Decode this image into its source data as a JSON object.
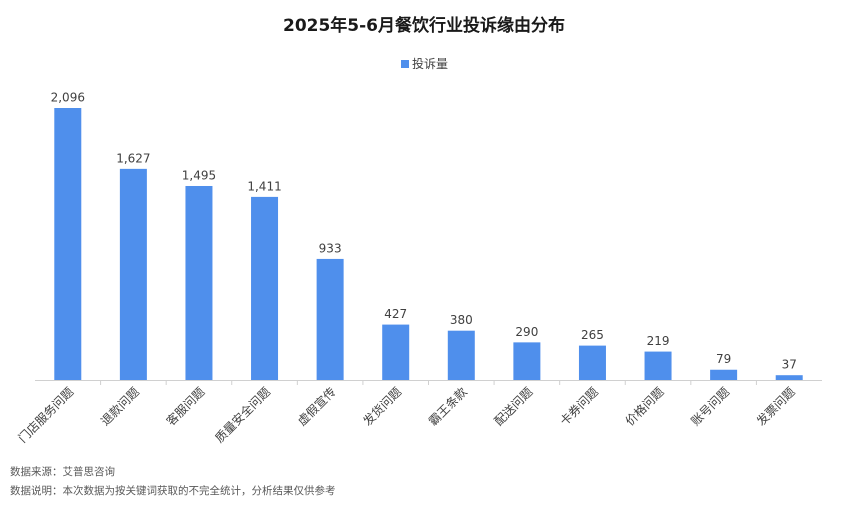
{
  "chart_data": {
    "type": "bar",
    "title": "2025年5-6月餐饮行业投诉缘由分布",
    "categories": [
      "门店服务问题",
      "退款问题",
      "客服问题",
      "质量安全问题",
      "虚假宣传",
      "发货问题",
      "霸王条款",
      "配送问题",
      "卡券问题",
      "价格问题",
      "账号问题",
      "发票问题"
    ],
    "series": [
      {
        "name": "投诉量",
        "color": "#4f8fec",
        "values": [
          2096,
          1627,
          1495,
          1411,
          933,
          427,
          380,
          290,
          265,
          219,
          79,
          37
        ],
        "value_labels": [
          "2,096",
          "1,627",
          "1,495",
          "1,411",
          "933",
          "427",
          "380",
          "290",
          "265",
          "219",
          "79",
          "37"
        ]
      }
    ],
    "notes": [
      "数据来源：艾普思咨询",
      "数据说明：本次数据为按关键词获取的不完全统计，分析结果仅供参考"
    ]
  }
}
